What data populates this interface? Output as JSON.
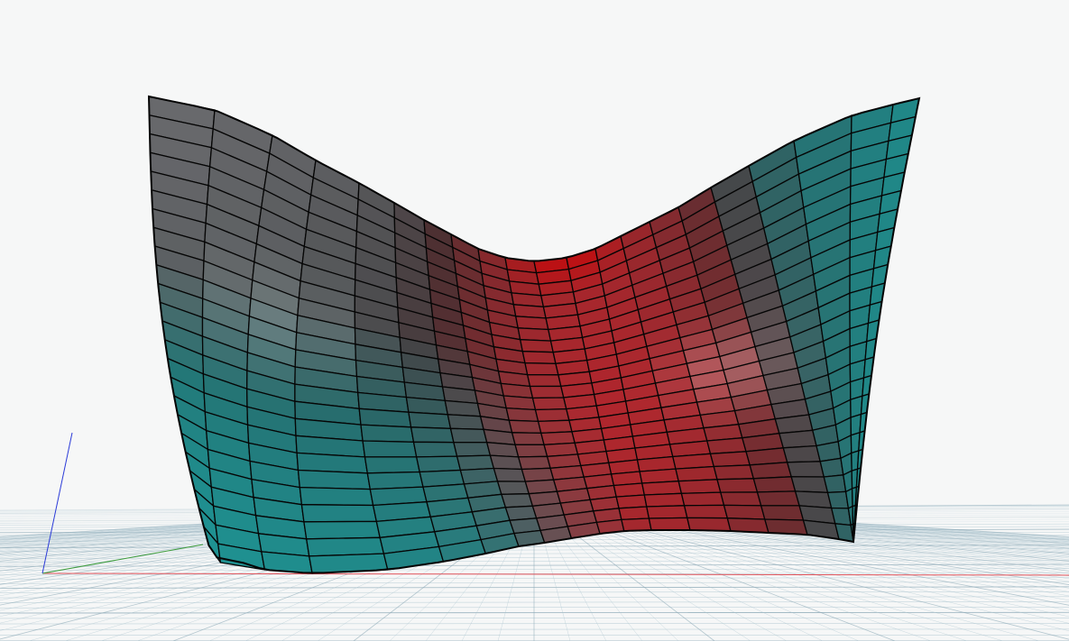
{
  "viewport": {
    "background_color": "#f6f7f7",
    "grid_color": "#a9c3ce",
    "grid_major_color": "#88a6b4"
  },
  "axes": {
    "x_color": "#e0525a",
    "y_color": "#3a9a3a",
    "z_color": "#2b3bd8"
  },
  "surface": {
    "type": "bent-sheet",
    "rows": 24,
    "columns": 22,
    "edge_color": "#050505",
    "colors": {
      "teal": "#18b6b6",
      "red": "#d8222a",
      "grey": "#7c7c80",
      "dark": "#2f3334"
    }
  }
}
